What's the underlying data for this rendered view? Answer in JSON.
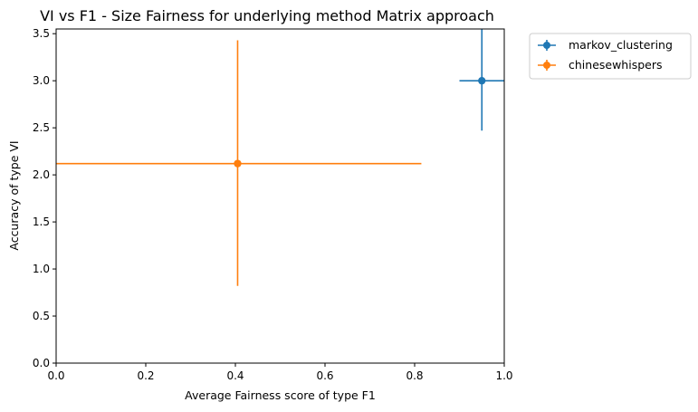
{
  "chart_data": {
    "type": "scatter",
    "title": "VI vs F1 - Size Fairness for underlying method Matrix approach",
    "xlabel": "Average Fairness score of type F1",
    "ylabel": "Accuracy of type VI",
    "xlim": [
      0.0,
      1.0
    ],
    "ylim": [
      0.0,
      3.55
    ],
    "xticks": [
      0.0,
      0.2,
      0.4,
      0.6,
      0.8,
      1.0
    ],
    "xtick_labels": [
      "0.0",
      "0.2",
      "0.4",
      "0.6",
      "0.8",
      "1.0"
    ],
    "yticks": [
      0.0,
      0.5,
      1.0,
      1.5,
      2.0,
      2.5,
      3.0,
      3.5
    ],
    "ytick_labels": [
      "0.0",
      "0.5",
      "1.0",
      "1.5",
      "2.0",
      "2.5",
      "3.0",
      "3.5"
    ],
    "grid": false,
    "legend_position": "outside-top-right",
    "series": [
      {
        "name": "markov_clustering",
        "color": "#1f77b4",
        "x": 0.95,
        "y": 3.0,
        "xerr": 0.05,
        "yerr_low": 0.53,
        "yerr_high": 0.6
      },
      {
        "name": "chinesewhispers",
        "color": "#ff7f0e",
        "x": 0.405,
        "y": 2.12,
        "xerr": 0.41,
        "yerr_low": 1.3,
        "yerr_high": 1.31
      }
    ]
  }
}
